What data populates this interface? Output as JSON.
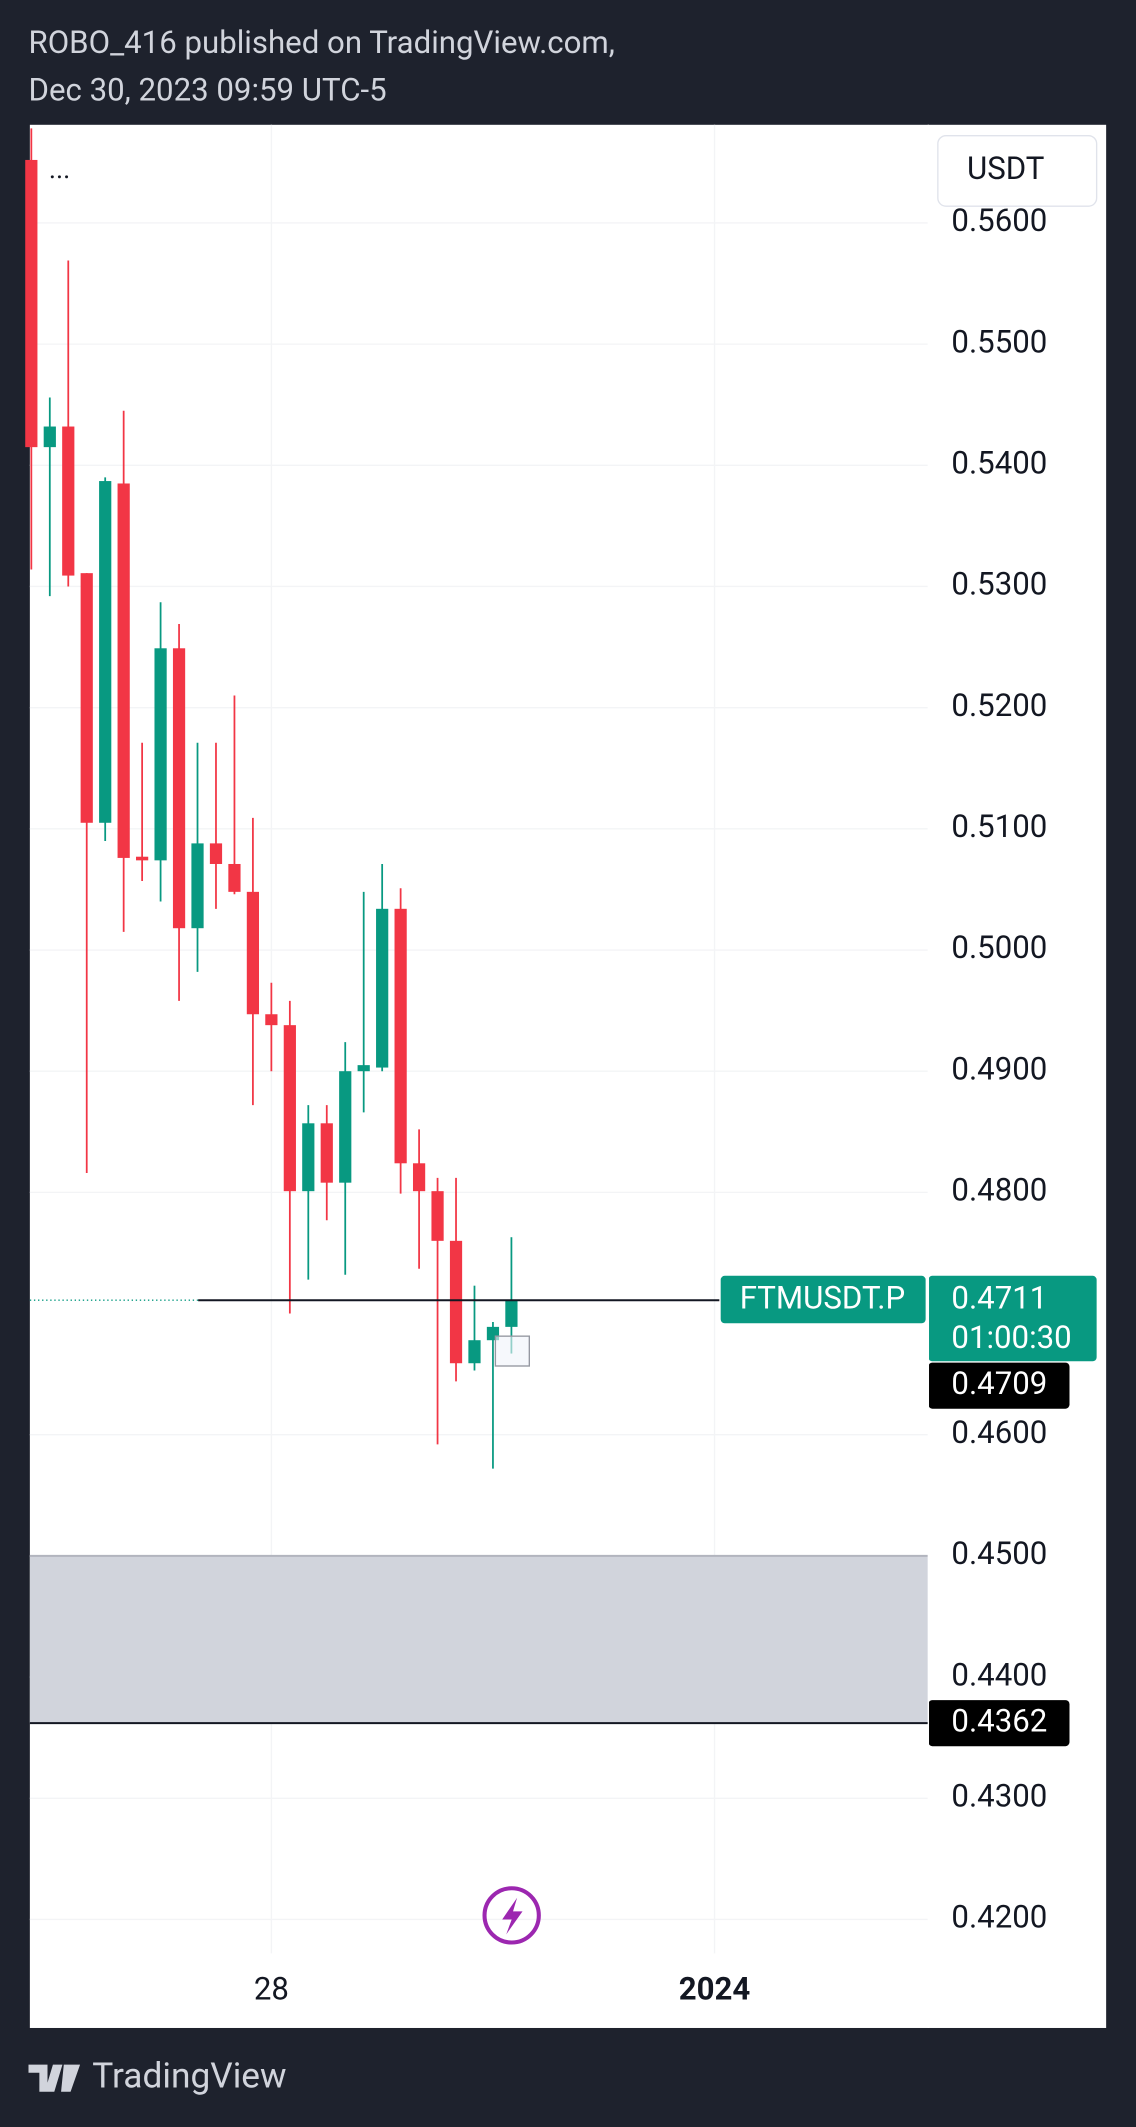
{
  "chart_data": {
    "type": "candlestick",
    "title": "ROBO_416 published on TradingView.com,",
    "subtitle": "Dec 30, 2023 09:59 UTC-5",
    "currency": "USDT",
    "menu": "...",
    "symbol": "FTMUSDT.P",
    "last_price": 0.4711,
    "countdown": "01:00:30",
    "price_lines": [
      0.4709,
      0.4362
    ],
    "zone": [
      0.4362,
      0.45
    ],
    "brand": "TradingView",
    "up_color": "#089981",
    "down_color": "#f23645",
    "x": [
      25.8333,
      26,
      26.1667,
      26.3333,
      26.5,
      26.6667,
      26.8333,
      27,
      27.1667,
      27.3333,
      27.5,
      27.6667,
      27.8333,
      28,
      28.1667,
      28.3333,
      28.5,
      28.6667,
      28.8333,
      29,
      29.1667,
      29.3333,
      29.5,
      29.6667,
      29.8333,
      30,
      30.1667
    ],
    "open": [
      0.5652,
      0.5415,
      0.5432,
      0.5311,
      0.5105,
      0.5385,
      0.5077,
      0.5074,
      0.5249,
      0.5018,
      0.5088,
      0.5071,
      0.5048,
      0.4947,
      0.4938,
      0.4801,
      0.4857,
      0.4808,
      0.49,
      0.4903,
      0.5034,
      0.4824,
      0.4801,
      0.476,
      0.4659,
      0.4678,
      0.4689
    ],
    "high": [
      0.5678,
      0.5456,
      0.5569,
      0.5311,
      0.539,
      0.5445,
      0.5171,
      0.5287,
      0.5269,
      0.5171,
      0.5171,
      0.521,
      0.5109,
      0.4973,
      0.4958,
      0.4872,
      0.4872,
      0.4924,
      0.5048,
      0.5071,
      0.5051,
      0.4852,
      0.4812,
      0.4812,
      0.4723,
      0.4693,
      0.4763
    ],
    "low": [
      0.5314,
      0.5292,
      0.53,
      0.4816,
      0.509,
      0.5015,
      0.5057,
      0.504,
      0.4958,
      0.4982,
      0.5034,
      0.5046,
      0.4872,
      0.49,
      0.47,
      0.4728,
      0.4777,
      0.4732,
      0.4866,
      0.49,
      0.4799,
      0.4737,
      0.4592,
      0.4644,
      0.4653,
      0.4572,
      0.4667
    ],
    "close": [
      0.5415,
      0.5432,
      0.5309,
      0.5105,
      0.5387,
      0.5076,
      0.5074,
      0.5249,
      0.5018,
      0.5088,
      0.5071,
      0.5048,
      0.4947,
      0.4938,
      0.4801,
      0.4857,
      0.4808,
      0.49,
      0.4905,
      0.5034,
      0.4824,
      0.4801,
      0.476,
      0.4659,
      0.4678,
      0.4689,
      0.4711
    ],
    "xlim": [
      25.82,
      33.93
    ],
    "xticks": [
      28,
      {
        "value": 32,
        "label": "2024"
      }
    ],
    "ylim": [
      0.4172,
      0.5681
    ],
    "yticks": [
      {
        "value": 0.42,
        "label": "0.4200"
      },
      {
        "value": 0.43,
        "label": "0.4300"
      },
      {
        "value": 0.44,
        "label": "0.4400"
      },
      {
        "value": 0.45,
        "label": "0.4500"
      },
      {
        "value": 0.46,
        "label": "0.4600"
      },
      {
        "value": 0.48,
        "label": "0.4800"
      },
      {
        "value": 0.49,
        "label": "0.4900"
      },
      {
        "value": 0.5,
        "label": "0.5000"
      },
      {
        "value": 0.51,
        "label": "0.5100"
      },
      {
        "value": 0.52,
        "label": "0.5200"
      },
      {
        "value": 0.53,
        "label": "0.5300"
      },
      {
        "value": 0.54,
        "label": "0.5400"
      },
      {
        "value": 0.55,
        "label": "0.5500"
      },
      {
        "value": 0.56,
        "label": "0.5600"
      }
    ],
    "grid": true
  }
}
